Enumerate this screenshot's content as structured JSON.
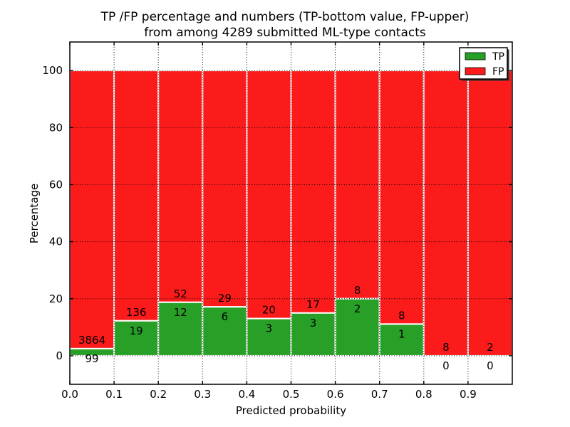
{
  "title": {
    "line1": "TP /FP percentage and numbers (TP-bottom value, FP-upper)",
    "line2": "from among 4289 submitted ML-type contacts"
  },
  "chart_data": {
    "type": "bar",
    "stacked": true,
    "total_contacts": 4289,
    "xlabel": "Predicted probability",
    "ylabel": "Percentage",
    "xlim": [
      0,
      1
    ],
    "ylim": [
      -10,
      110
    ],
    "bin_edges": [
      0.0,
      0.1,
      0.2,
      0.3,
      0.4,
      0.5,
      0.6,
      0.7,
      0.8,
      0.9,
      1.0
    ],
    "xticks": [
      {
        "value": 0.0,
        "label": "0.0"
      },
      {
        "value": 0.1,
        "label": "0.1"
      },
      {
        "value": 0.2,
        "label": "0.2"
      },
      {
        "value": 0.3,
        "label": "0.3"
      },
      {
        "value": 0.4,
        "label": "0.4"
      },
      {
        "value": 0.5,
        "label": "0.5"
      },
      {
        "value": 0.6,
        "label": "0.6"
      },
      {
        "value": 0.7,
        "label": "0.7"
      },
      {
        "value": 0.8,
        "label": "0.8"
      },
      {
        "value": 0.9,
        "label": "0.9"
      }
    ],
    "yticks": [
      {
        "value": 0,
        "label": "0"
      },
      {
        "value": 20,
        "label": "20"
      },
      {
        "value": 40,
        "label": "40"
      },
      {
        "value": 60,
        "label": "60"
      },
      {
        "value": 80,
        "label": "80"
      },
      {
        "value": 100,
        "label": "100"
      }
    ],
    "grid": "dotted",
    "series": [
      {
        "name": "TP",
        "color": "#28a028",
        "counts": [
          99,
          19,
          12,
          6,
          3,
          3,
          2,
          1,
          0,
          0
        ],
        "percentages": [
          2.5,
          12.26,
          18.75,
          17.14,
          13.04,
          15.0,
          20.0,
          11.11,
          0.0,
          0.0
        ]
      },
      {
        "name": "FP",
        "color": "#fb1b1b",
        "counts": [
          3864,
          136,
          52,
          29,
          20,
          17,
          8,
          8,
          8,
          2
        ],
        "percentages": [
          97.5,
          87.74,
          81.25,
          82.86,
          86.96,
          85.0,
          80.0,
          88.89,
          100.0,
          100.0
        ]
      }
    ],
    "legend": {
      "position": "upper right",
      "entries": [
        {
          "label": "TP",
          "color": "#28a028"
        },
        {
          "label": "FP",
          "color": "#fb1b1b"
        }
      ]
    }
  },
  "colors": {
    "tp_green": "#28a028",
    "fp_red": "#fb1b1b",
    "grid": "#000000",
    "frame": "#000000",
    "background": "#ffffff"
  }
}
